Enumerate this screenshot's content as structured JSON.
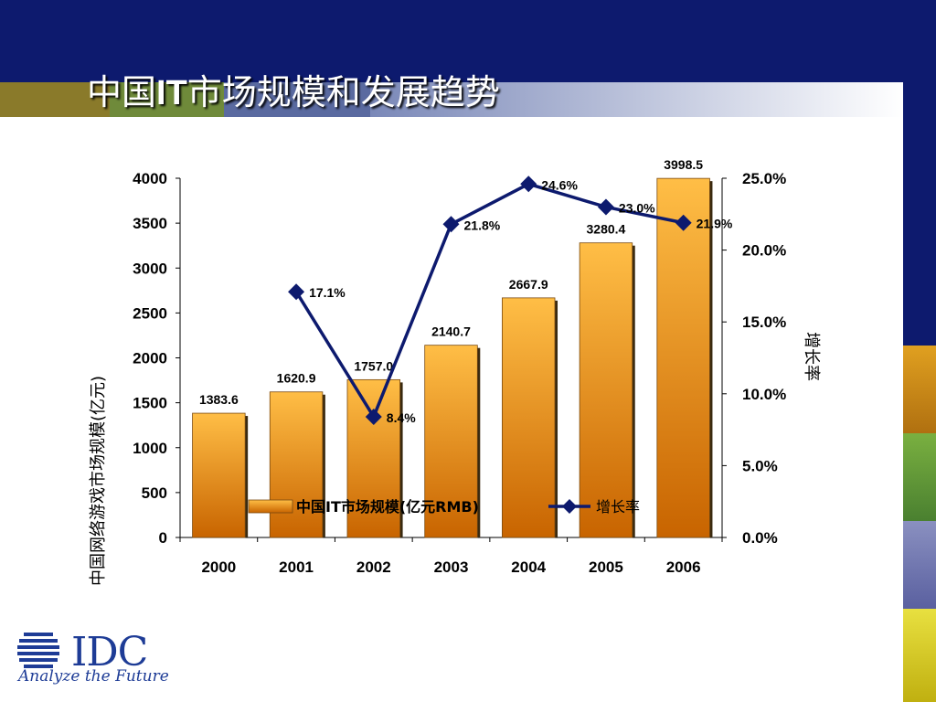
{
  "page": {
    "title_prefix": "中国",
    "title_bold": "IT",
    "title_suffix": "市场规模和发展趋势"
  },
  "colors": {
    "header": "#0d1a6e",
    "bar_top": "#ffbe46",
    "bar_bottom": "#c86400",
    "line": "#0d1a6e"
  },
  "chart_data": {
    "type": "bar",
    "categories": [
      "2000",
      "2001",
      "2002",
      "2003",
      "2004",
      "2005",
      "2006"
    ],
    "series": [
      {
        "name": "中国IT市场规模(亿元RMB)",
        "type": "bar",
        "axis": "left",
        "values": [
          1383.6,
          1620.9,
          1757.0,
          2140.7,
          2667.9,
          3280.4,
          3998.5
        ],
        "labels": [
          "1383.6",
          "1620.9",
          "1757.0",
          "2140.7",
          "2667.9",
          "3280.4",
          "3998.5"
        ]
      },
      {
        "name": "增长率",
        "type": "line",
        "axis": "right",
        "values": [
          null,
          17.1,
          8.4,
          21.8,
          24.6,
          23.0,
          21.9
        ],
        "labels": [
          "",
          "17.1%",
          "8.4%",
          "21.8%",
          "24.6%",
          "23.0%",
          "21.9%"
        ]
      }
    ],
    "ylabel": "中国网络游戏市场规模(亿元)",
    "y2label": "增长率",
    "ylim": [
      0,
      4000
    ],
    "yticks": [
      "0",
      "500",
      "1000",
      "1500",
      "2000",
      "2500",
      "3000",
      "3500",
      "4000"
    ],
    "y2lim": [
      0,
      25
    ],
    "y2ticks": [
      "0.0%",
      "5.0%",
      "10.0%",
      "15.0%",
      "20.0%",
      "25.0%"
    ],
    "grid": false,
    "legend": "bottom"
  },
  "logo": {
    "text": "IDC",
    "tagline": "Analyze the Future"
  }
}
